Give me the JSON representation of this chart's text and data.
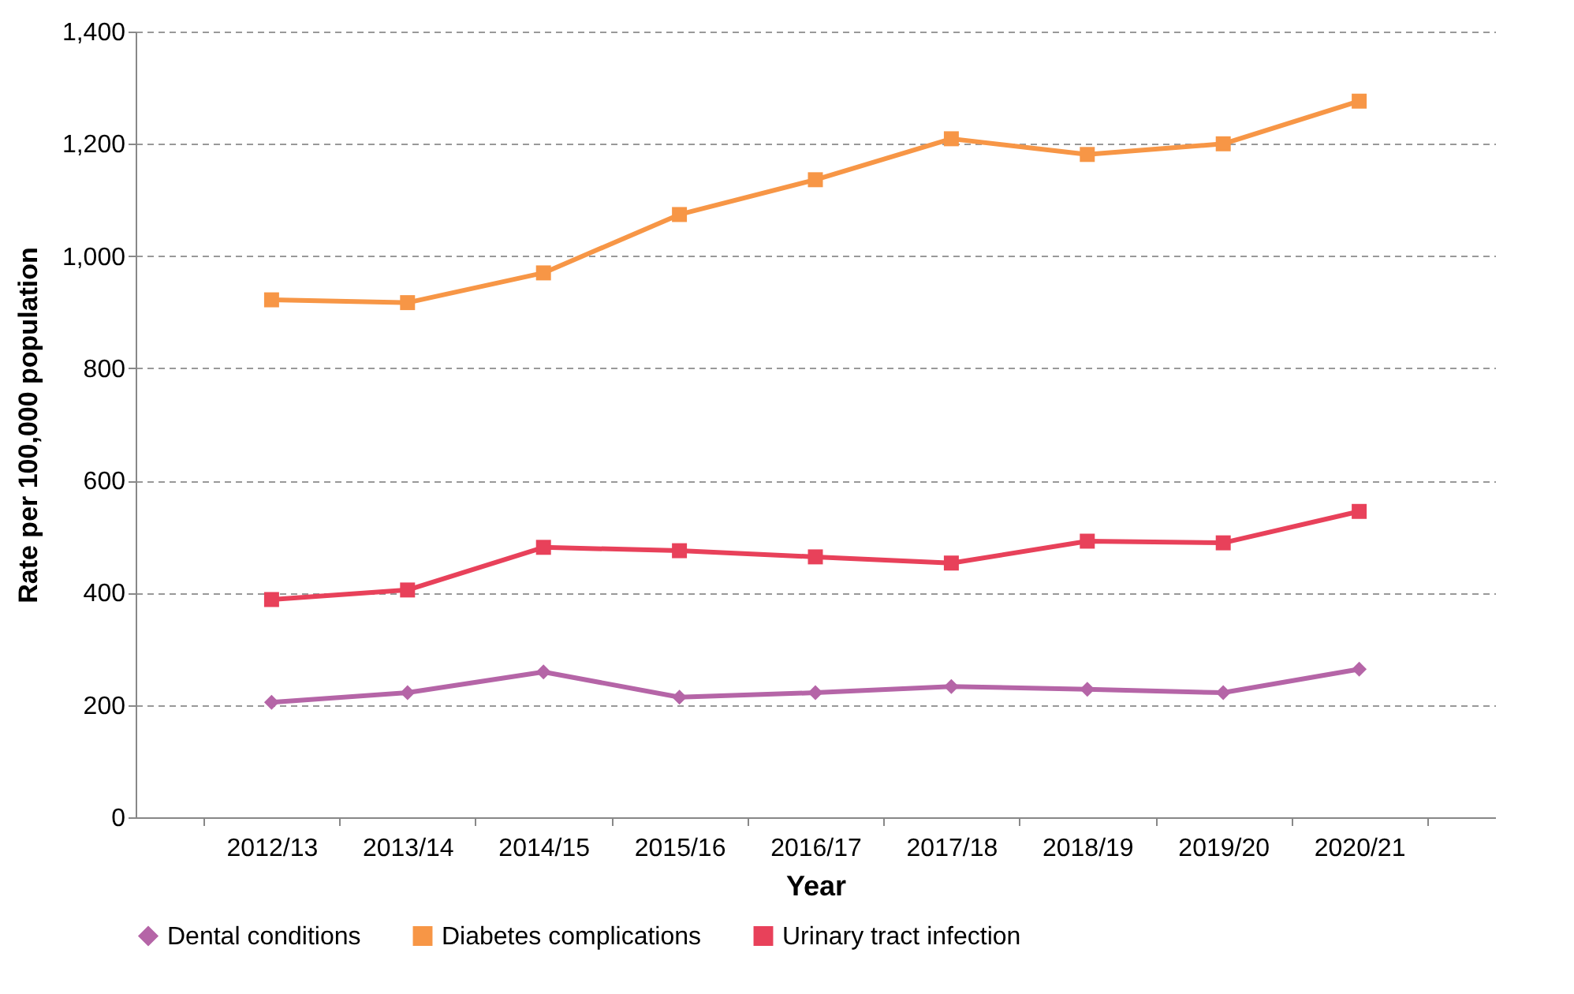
{
  "chart_data": {
    "type": "line",
    "xlabel": "Year",
    "ylabel": "Rate per 100,000 population",
    "categories": [
      "2012/13",
      "2013/14",
      "2014/15",
      "2015/16",
      "2016/17",
      "2017/18",
      "2018/19",
      "2019/20",
      "2020/21"
    ],
    "series": [
      {
        "name": "Dental conditions",
        "color": "#b565a7",
        "marker": "diamond",
        "values": [
          205,
          222,
          259,
          214,
          222,
          233,
          228,
          222,
          264
        ]
      },
      {
        "name": "Diabetes complications",
        "color": "#f79646",
        "marker": "square",
        "values": [
          922,
          917,
          970,
          1074,
          1136,
          1209,
          1181,
          1200,
          1276
        ]
      },
      {
        "name": "Urinary tract infection",
        "color": "#e8415a",
        "marker": "square",
        "values": [
          388,
          405,
          481,
          475,
          464,
          453,
          492,
          489,
          545
        ]
      }
    ],
    "ylim": [
      0,
      1400
    ],
    "yticks": [
      0,
      200,
      400,
      600,
      800,
      {
        "value": 1000,
        "label": "1,000"
      },
      {
        "value": 1200,
        "label": "1,200"
      },
      {
        "value": 1400,
        "label": "1,400"
      }
    ],
    "grid": "y",
    "legend": "bottom",
    "line_style": "solid"
  }
}
